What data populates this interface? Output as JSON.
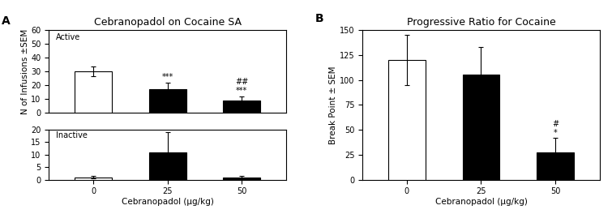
{
  "chart_data": [
    {
      "type": "bar",
      "title": "Cebranopadol on Cocaine SA",
      "panel_label": "A",
      "y_label": "N of Infusions ±SEM",
      "categories": [
        "0",
        "25",
        "50"
      ],
      "values": [
        30,
        17,
        9
      ],
      "errors": [
        3.5,
        5,
        3
      ],
      "colors": [
        "white",
        "black",
        "black"
      ],
      "ylim": [
        0,
        60
      ],
      "yticks": [
        0,
        10,
        20,
        30,
        40,
        50,
        60
      ],
      "tick_labels": "y",
      "annotations": [
        {
          "text": "Active"
        },
        {
          "category": "25",
          "text": "***"
        },
        {
          "category": "50",
          "text": "***"
        },
        {
          "category": "50",
          "text": "##"
        }
      ]
    },
    {
      "type": "bar",
      "x_label": "Cebranopadol (μg/kg)",
      "categories": [
        "0",
        "25",
        "50"
      ],
      "values": [
        1,
        11,
        1
      ],
      "errors": [
        0.5,
        8,
        0.5
      ],
      "colors": [
        "white",
        "black",
        "black"
      ],
      "ylim": [
        0,
        20
      ],
      "yticks": [
        0,
        5,
        10,
        15,
        20
      ],
      "annotations": [
        {
          "text": "Inactive"
        }
      ]
    },
    {
      "type": "bar",
      "title": "Progressive Ratio for Cocaine",
      "panel_label": "B",
      "x_label": "Cebranopadol (μg/kg)",
      "y_label": "Break Point ± SEM",
      "categories": [
        "0",
        "25",
        "50"
      ],
      "values": [
        120,
        105,
        27
      ],
      "errors": [
        25,
        28,
        15
      ],
      "colors": [
        "white",
        "black",
        "black"
      ],
      "ylim": [
        0,
        150
      ],
      "yticks": [
        0,
        25,
        50,
        75,
        100,
        125,
        150
      ],
      "annotations": [
        {
          "category": "50",
          "text": "*"
        },
        {
          "category": "50",
          "text": "#"
        }
      ]
    }
  ]
}
